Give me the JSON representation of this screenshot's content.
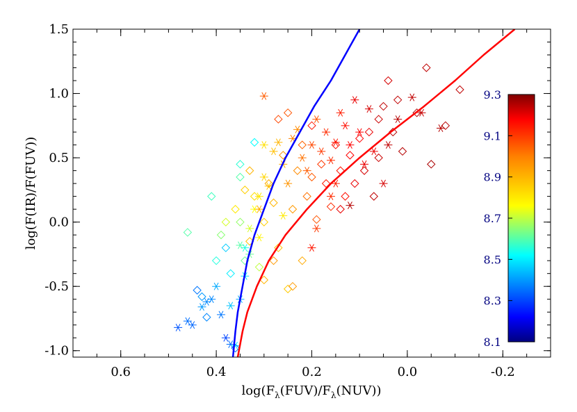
{
  "chart_data": {
    "type": "scatter",
    "xlabel": "log(Fλ(FUV)/Fλ(NUV))",
    "ylabel": "log(F(IR)/F(FUV))",
    "xlim": [
      0.7,
      -0.3
    ],
    "ylim": [
      -1.05,
      1.5
    ],
    "x_reversed": true,
    "x_ticks": [
      0.6,
      0.4,
      0.2,
      0.0,
      -0.2
    ],
    "x_tick_labels": [
      "0.6",
      "0.4",
      "0.2",
      "0.0",
      "-0.2"
    ],
    "y_ticks": [
      -1.0,
      -0.5,
      0.0,
      0.5,
      1.0,
      1.5
    ],
    "y_tick_labels": [
      "-1.0",
      "-0.5",
      "0.0",
      "0.5",
      "1.0",
      "1.5"
    ],
    "grid": false,
    "colorbar": {
      "range": [
        8.1,
        9.3
      ],
      "ticks": [
        8.1,
        8.3,
        8.5,
        8.7,
        8.9,
        9.1,
        9.3
      ],
      "tick_labels": [
        "8.1",
        "8.3",
        "8.5",
        "8.7",
        "8.9",
        "9.1",
        "9.3"
      ],
      "label_color": "#000080",
      "colormap": "rainbow"
    },
    "curves": [
      {
        "color": "#0000ff",
        "points": [
          [
            0.365,
            -1.05
          ],
          [
            0.36,
            -0.85
          ],
          [
            0.355,
            -0.7
          ],
          [
            0.345,
            -0.5
          ],
          [
            0.335,
            -0.3
          ],
          [
            0.32,
            -0.1
          ],
          [
            0.3,
            0.1
          ],
          [
            0.28,
            0.3
          ],
          [
            0.255,
            0.5
          ],
          [
            0.225,
            0.7
          ],
          [
            0.195,
            0.9
          ],
          [
            0.16,
            1.1
          ],
          [
            0.13,
            1.3
          ],
          [
            0.1,
            1.5
          ]
        ]
      },
      {
        "color": "#ff0000",
        "points": [
          [
            0.355,
            -1.05
          ],
          [
            0.345,
            -0.85
          ],
          [
            0.335,
            -0.7
          ],
          [
            0.315,
            -0.5
          ],
          [
            0.29,
            -0.3
          ],
          [
            0.255,
            -0.1
          ],
          [
            0.21,
            0.1
          ],
          [
            0.16,
            0.3
          ],
          [
            0.1,
            0.5
          ],
          [
            0.035,
            0.7
          ],
          [
            -0.035,
            0.9
          ],
          [
            -0.1,
            1.1
          ],
          [
            -0.16,
            1.3
          ],
          [
            -0.225,
            1.5
          ]
        ]
      }
    ],
    "series": [
      {
        "marker": "asterisk",
        "points": [
          [
            0.48,
            -0.82,
            8.32
          ],
          [
            0.46,
            -0.77,
            8.35
          ],
          [
            0.43,
            -0.66,
            8.4
          ],
          [
            0.41,
            -0.6,
            8.38
          ],
          [
            0.4,
            -0.5,
            8.42
          ],
          [
            0.39,
            -0.72,
            8.36
          ],
          [
            0.38,
            -0.9,
            8.3
          ],
          [
            0.37,
            -0.95,
            8.35
          ],
          [
            0.37,
            -0.65,
            8.45
          ],
          [
            0.36,
            -0.96,
            8.5
          ],
          [
            0.35,
            -0.6,
            8.42
          ],
          [
            0.34,
            -0.42,
            8.48
          ],
          [
            0.34,
            -0.2,
            8.55
          ],
          [
            0.33,
            -0.25,
            8.62
          ],
          [
            0.33,
            -0.05,
            8.72
          ],
          [
            0.32,
            0.1,
            8.76
          ],
          [
            0.31,
            0.2,
            8.8
          ],
          [
            0.3,
            0.35,
            8.84
          ],
          [
            0.29,
            0.28,
            8.86
          ],
          [
            0.3,
            0.6,
            8.82
          ],
          [
            0.31,
            0.1,
            8.92
          ],
          [
            0.28,
            0.55,
            8.88
          ],
          [
            0.27,
            0.62,
            8.9
          ],
          [
            0.26,
            0.45,
            8.92
          ],
          [
            0.25,
            0.3,
            8.96
          ],
          [
            0.24,
            0.65,
            9.0
          ],
          [
            0.23,
            0.72,
            8.98
          ],
          [
            0.22,
            0.5,
            9.02
          ],
          [
            0.21,
            0.4,
            9.05
          ],
          [
            0.2,
            0.6,
            9.08
          ],
          [
            0.19,
            0.8,
            9.06
          ],
          [
            0.18,
            0.55,
            9.1
          ],
          [
            0.17,
            0.7,
            9.12
          ],
          [
            0.16,
            0.48,
            9.12
          ],
          [
            0.15,
            0.62,
            9.15
          ],
          [
            0.14,
            0.85,
            9.14
          ],
          [
            0.13,
            0.75,
            9.16
          ],
          [
            0.12,
            0.6,
            9.18
          ],
          [
            0.11,
            0.95,
            9.2
          ],
          [
            0.1,
            0.7,
            9.18
          ],
          [
            0.09,
            0.45,
            9.2
          ],
          [
            0.08,
            0.88,
            9.22
          ],
          [
            0.07,
            0.55,
            9.2
          ],
          [
            0.05,
            0.3,
            9.22
          ],
          [
            0.04,
            0.6,
            9.24
          ],
          [
            0.02,
            0.8,
            9.25
          ],
          [
            -0.01,
            0.97,
            9.24
          ],
          [
            -0.03,
            0.85,
            9.23
          ],
          [
            -0.07,
            0.73,
            9.25
          ],
          [
            0.16,
            0.2,
            9.12
          ],
          [
            0.19,
            -0.05,
            9.1
          ],
          [
            0.3,
            0.98,
            9.05
          ],
          [
            0.31,
            -0.12,
            8.78
          ],
          [
            0.26,
            0.05,
            8.8
          ],
          [
            0.2,
            -0.2,
            9.15
          ],
          [
            0.12,
            0.13,
            9.25
          ],
          [
            0.15,
            0.3,
            9.14
          ],
          [
            0.42,
            -0.62,
            8.38
          ],
          [
            0.45,
            -0.8,
            8.34
          ],
          [
            0.35,
            -0.18,
            8.6
          ]
        ]
      },
      {
        "marker": "diamond",
        "points": [
          [
            0.44,
            -0.53,
            8.36
          ],
          [
            0.43,
            -0.58,
            8.4
          ],
          [
            0.42,
            -0.74,
            8.38
          ],
          [
            0.41,
            0.2,
            8.58
          ],
          [
            0.4,
            -0.3,
            8.55
          ],
          [
            0.39,
            -0.1,
            8.65
          ],
          [
            0.38,
            0.0,
            8.72
          ],
          [
            0.38,
            -0.2,
            8.46
          ],
          [
            0.37,
            -0.4,
            8.5
          ],
          [
            0.36,
            0.1,
            8.8
          ],
          [
            0.36,
            -0.98,
            8.35
          ],
          [
            0.35,
            0.35,
            8.6
          ],
          [
            0.35,
            0.0,
            8.66
          ],
          [
            0.34,
            0.25,
            8.85
          ],
          [
            0.34,
            -0.3,
            8.62
          ],
          [
            0.33,
            0.4,
            8.9
          ],
          [
            0.33,
            -0.15,
            8.88
          ],
          [
            0.32,
            0.2,
            8.82
          ],
          [
            0.31,
            -0.35,
            8.7
          ],
          [
            0.3,
            -0.45,
            8.9
          ],
          [
            0.3,
            0.0,
            8.85
          ],
          [
            0.29,
            0.3,
            8.92
          ],
          [
            0.28,
            0.15,
            8.9
          ],
          [
            0.27,
            -0.2,
            8.88
          ],
          [
            0.27,
            0.8,
            9.08
          ],
          [
            0.26,
            0.52,
            8.96
          ],
          [
            0.25,
            0.85,
            9.06
          ],
          [
            0.25,
            -0.52,
            8.86
          ],
          [
            0.24,
            0.1,
            8.95
          ],
          [
            0.23,
            0.4,
            8.98
          ],
          [
            0.22,
            -0.3,
            8.92
          ],
          [
            0.22,
            0.6,
            9.04
          ],
          [
            0.21,
            0.2,
            9.02
          ],
          [
            0.2,
            0.35,
            9.05
          ],
          [
            0.19,
            0.02,
            9.06
          ],
          [
            0.18,
            0.45,
            9.1
          ],
          [
            0.17,
            0.3,
            9.14
          ],
          [
            0.16,
            0.12,
            9.12
          ],
          [
            0.15,
            0.6,
            9.16
          ],
          [
            0.14,
            0.4,
            9.15
          ],
          [
            0.13,
            0.2,
            9.16
          ],
          [
            0.12,
            0.52,
            9.18
          ],
          [
            0.11,
            0.3,
            9.2
          ],
          [
            0.1,
            0.65,
            9.18
          ],
          [
            0.09,
            0.4,
            9.22
          ],
          [
            0.08,
            0.7,
            9.2
          ],
          [
            0.07,
            0.2,
            9.24
          ],
          [
            0.06,
            0.5,
            9.23
          ],
          [
            0.05,
            0.9,
            9.24
          ],
          [
            0.04,
            1.1,
            9.22
          ],
          [
            0.03,
            0.7,
            9.25
          ],
          [
            0.02,
            0.95,
            9.24
          ],
          [
            0.01,
            0.55,
            9.25
          ],
          [
            -0.02,
            0.85,
            9.26
          ],
          [
            -0.04,
            1.2,
            9.24
          ],
          [
            -0.05,
            0.45,
            9.26
          ],
          [
            -0.08,
            0.75,
            9.25
          ],
          [
            -0.11,
            1.03,
            9.24
          ],
          [
            0.46,
            -0.08,
            8.6
          ],
          [
            0.32,
            0.62,
            8.52
          ],
          [
            0.35,
            0.45,
            8.56
          ],
          [
            0.28,
            -0.3,
            8.95
          ],
          [
            0.24,
            -0.5,
            8.95
          ],
          [
            0.2,
            0.75,
            9.15
          ],
          [
            0.14,
            0.1,
            9.2
          ],
          [
            0.06,
            0.8,
            9.23
          ]
        ]
      }
    ]
  }
}
